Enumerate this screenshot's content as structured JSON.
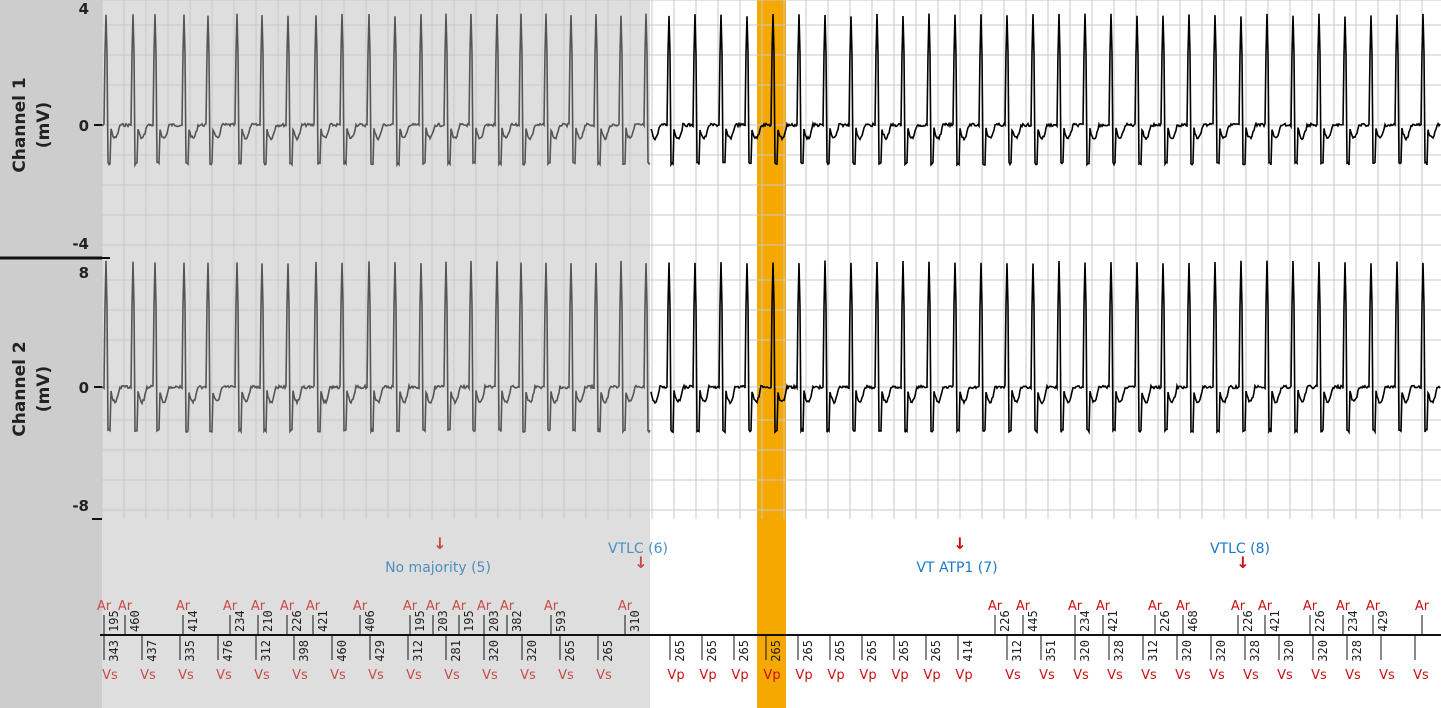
{
  "chart_data": [
    {
      "type": "line",
      "name": "Channel 1",
      "ylabel_line1": "Channel 1",
      "ylabel_line2": "(mV)",
      "ylim": [
        -4,
        4
      ],
      "yticks": [
        4,
        0,
        -4
      ],
      "grid": true
    },
    {
      "type": "line",
      "name": "Channel 2",
      "ylabel_line1": "Channel 2",
      "ylabel_line2": "(mV)",
      "ylim": [
        -8,
        8
      ],
      "yticks": [
        8,
        0,
        -8
      ],
      "grid": true
    }
  ],
  "colors": {
    "pre_region": "#dedede",
    "pre_trace": "#555555",
    "post_trace": "#000000",
    "highlight": "#f5a800",
    "marker_red": "#cc1010",
    "pre_marker_red": "#c84a4a",
    "annotation_blue": "#1c78c8",
    "pre_annotation_blue": "#4b8fc0",
    "grid": "#c8c8c8"
  },
  "annotations": [
    {
      "text": "No majority (5)",
      "region": "pre"
    },
    {
      "text": "VTLC (6)",
      "region": "pre"
    },
    {
      "text": "VT ATP1 (7)",
      "region": "post"
    },
    {
      "text": "VTLC (8)",
      "region": "post"
    }
  ],
  "atrial_marker_label": "Ar",
  "atrial_intervals": [
    "195",
    "460",
    "414",
    "234",
    "210",
    "226",
    "421",
    "406",
    "195",
    "203",
    "195",
    "203",
    "382",
    "593",
    "310",
    "226",
    "445",
    "234",
    "421",
    "226",
    "468",
    "226",
    "421",
    "226",
    "234",
    "429"
  ],
  "ventricular_intervals": [
    "343",
    "437",
    "335",
    "476",
    "312",
    "398",
    "460",
    "429",
    "312",
    "281",
    "320",
    "320",
    "265",
    "265",
    "265",
    "265",
    "265",
    "265",
    "265",
    "265",
    "265",
    "265",
    "265",
    "414",
    "312",
    "351",
    "320",
    "328",
    "312",
    "320",
    "320",
    "328",
    "320",
    "320",
    "328"
  ],
  "ventricular_markers": [
    "Vs",
    "Vs",
    "Vs",
    "Vs",
    "Vs",
    "Vs",
    "Vs",
    "Vs",
    "Vs",
    "Vs",
    "Vs",
    "Vs",
    "Vs",
    "Vs",
    "Vp",
    "Vp",
    "Vp",
    "Vp",
    "Vp",
    "Vp",
    "Vp",
    "Vp",
    "Vp",
    "Vp",
    "Vs",
    "Vs",
    "Vs",
    "Vs",
    "Vs",
    "Vs",
    "Vs",
    "Vs",
    "Vs",
    "Vs",
    "Vs",
    "Vs",
    "Vs",
    "V"
  ]
}
